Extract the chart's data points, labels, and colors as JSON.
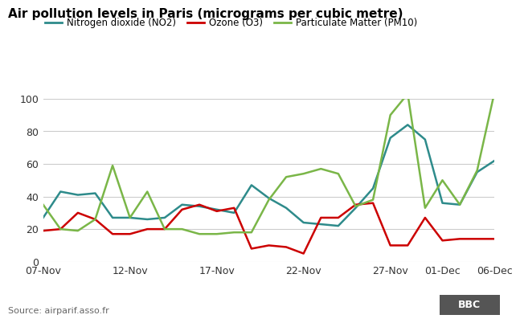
{
  "title": "Air pollution levels in Paris (micrograms per cubic metre)",
  "source": "Source: airparif.asso.fr",
  "legend": [
    {
      "label": "Nitrogen dioxide (NO2)",
      "color": "#2E8B8B"
    },
    {
      "label": "Ozone (O3)",
      "color": "#CC0000"
    },
    {
      "label": "Particulate Matter (PM10)",
      "color": "#7AB648"
    }
  ],
  "x_labels": [
    "07-Nov",
    "12-Nov",
    "17-Nov",
    "22-Nov",
    "27-Nov",
    "01-Dec",
    "06-Dec"
  ],
  "no2": [
    27,
    43,
    41,
    42,
    27,
    27,
    26,
    27,
    35,
    34,
    32,
    30,
    47,
    39,
    33,
    24,
    23,
    22,
    33,
    45,
    76,
    84,
    75,
    36,
    35,
    55,
    62
  ],
  "o3": [
    19,
    20,
    30,
    26,
    17,
    17,
    20,
    20,
    32,
    35,
    31,
    33,
    8,
    10,
    9,
    5,
    27,
    27,
    35,
    36,
    10,
    10,
    27,
    13,
    14,
    14,
    14
  ],
  "pm10": [
    35,
    20,
    19,
    26,
    59,
    27,
    43,
    20,
    20,
    17,
    17,
    18,
    18,
    38,
    52,
    54,
    57,
    54,
    34,
    38,
    90,
    103,
    33,
    50,
    35,
    56,
    104
  ],
  "x_tick_positions": [
    0,
    5,
    10,
    15,
    20,
    23,
    26
  ],
  "ylim": [
    0,
    100
  ],
  "yticks": [
    0,
    20,
    40,
    60,
    80,
    100
  ],
  "background_color": "#FFFFFF",
  "grid_color": "#CCCCCC",
  "line_width": 1.8,
  "title_fontsize": 11,
  "legend_fontsize": 8.5,
  "tick_fontsize": 9,
  "source_fontsize": 8
}
